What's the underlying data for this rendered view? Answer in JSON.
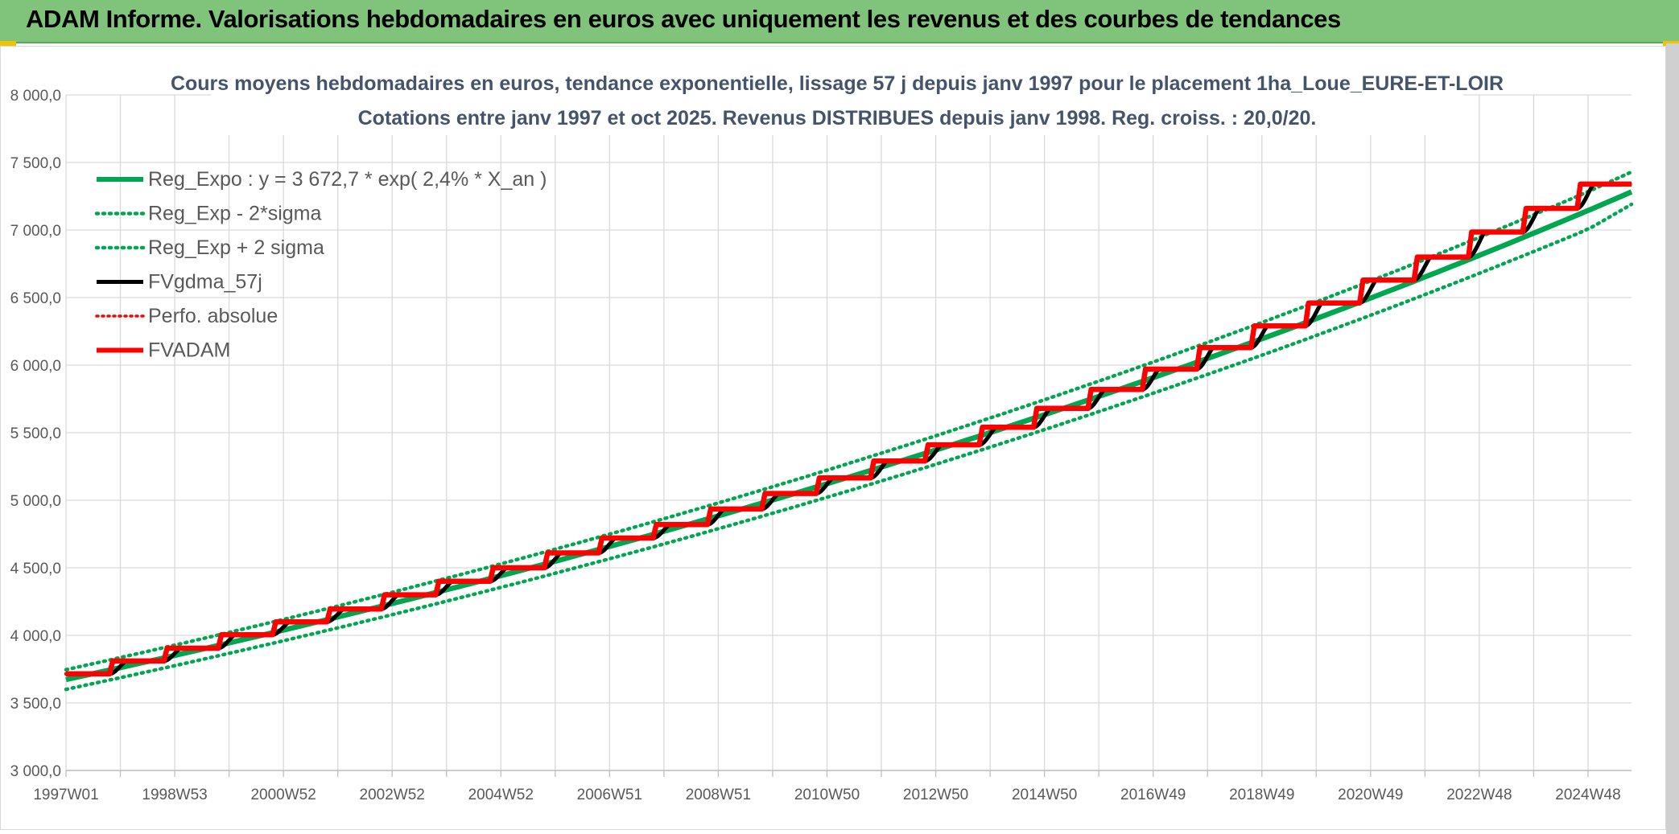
{
  "banner": {
    "title": "ADAM Informe. Valorisations hebdomadaires en euros avec uniquement les revenus et des courbes de tendances"
  },
  "colors": {
    "banner_bg": "#7fc47a",
    "reg_expo": "#00a650",
    "fv_gdma": "#000000",
    "perfo": "#ff0000",
    "fvadam": "#ff0000",
    "grid": "#d9d9d9",
    "text": "#595959",
    "title_text": "#44546a"
  },
  "chart_data": {
    "type": "line",
    "title": "Cours moyens hebdomadaires en euros, tendance exponentielle, lissage 57 j depuis janv 1997 pour le placement 1ha_Loue_EURE-ET-LOIR",
    "subtitle": "Cotations entre janv 1997 et oct 2025. Revenus DISTRIBUES depuis janv 1998. Reg. croiss. : 20,0/20.",
    "xlabel": "",
    "ylabel": "",
    "ylim": [
      3000,
      8000
    ],
    "yticks": [
      "3 000,0",
      "3 500,0",
      "4 000,0",
      "4 500,0",
      "5 000,0",
      "5 500,0",
      "6 000,0",
      "6 500,0",
      "7 000,0",
      "7 500,0",
      "8 000,0"
    ],
    "ytick_values": [
      3000,
      3500,
      4000,
      4500,
      5000,
      5500,
      6000,
      6500,
      7000,
      7500,
      8000
    ],
    "xrange_years": [
      1997.0,
      2025.8
    ],
    "xticks": [
      {
        "label": "1997W01",
        "year": 1997.0
      },
      {
        "label": "1998W53",
        "year": 1999.0
      },
      {
        "label": "2000W52",
        "year": 2001.0
      },
      {
        "label": "2002W52",
        "year": 2003.0
      },
      {
        "label": "2004W52",
        "year": 2005.0
      },
      {
        "label": "2006W51",
        "year": 2007.0
      },
      {
        "label": "2008W51",
        "year": 2009.0
      },
      {
        "label": "2010W50",
        "year": 2011.0
      },
      {
        "label": "2012W50",
        "year": 2013.0
      },
      {
        "label": "2014W50",
        "year": 2015.0
      },
      {
        "label": "2016W49",
        "year": 2017.0
      },
      {
        "label": "2018W49",
        "year": 2019.0
      },
      {
        "label": "2020W49",
        "year": 2021.0
      },
      {
        "label": "2022W48",
        "year": 2023.0
      },
      {
        "label": "2024W48",
        "year": 2025.0
      }
    ],
    "grid": true,
    "legend_position": "top-left",
    "series": [
      {
        "name": "Reg_Expo : y = 3 672,7 * exp( 2,4% *  X_an )",
        "style": "solid-thick",
        "color": "#00a650",
        "x": [
          1997.0,
          2001.0,
          2005.0,
          2009.0,
          2013.0,
          2017.0,
          2021.0,
          2025.0,
          2025.8
        ],
        "values": [
          3672.7,
          4038.7,
          4441.5,
          4884.4,
          5371.5,
          5907.2,
          6496.3,
          7144.1,
          7282.5
        ]
      },
      {
        "name": "Reg_Exp - 2*sigma",
        "style": "dotted",
        "color": "#00a650",
        "x": [
          1997.0,
          2001.0,
          2005.0,
          2009.0,
          2013.0,
          2017.0,
          2021.0,
          2025.0,
          2025.8
        ],
        "values": [
          3600,
          3960,
          4355,
          4789,
          5266,
          5792,
          6369,
          7005,
          7190
        ]
      },
      {
        "name": "Reg_Exp + 2 sigma",
        "style": "dotted",
        "color": "#00a650",
        "x": [
          1997.0,
          2001.0,
          2005.0,
          2009.0,
          2013.0,
          2017.0,
          2021.0,
          2025.0,
          2025.8
        ],
        "values": [
          3746,
          4118,
          4529,
          4980,
          5477,
          6023,
          6623,
          7284,
          7430
        ]
      },
      {
        "name": "FVgdma_57j",
        "style": "solid",
        "color": "#000000",
        "step_years": [
          1997,
          1998,
          1999,
          2000,
          2001,
          2002,
          2003,
          2004,
          2005,
          2006,
          2007,
          2008,
          2009,
          2010,
          2011,
          2012,
          2013,
          2014,
          2015,
          2016,
          2017,
          2018,
          2019,
          2020,
          2021,
          2022,
          2023,
          2024,
          2025
        ],
        "values": [
          3715,
          3810,
          3905,
          4005,
          4100,
          4195,
          4300,
          4400,
          4500,
          4610,
          4720,
          4820,
          4935,
          5050,
          5165,
          5290,
          5410,
          5540,
          5680,
          5820,
          5970,
          6130,
          6290,
          6460,
          6630,
          6800,
          6985,
          7160,
          7340
        ]
      },
      {
        "name": "Perfo. absolue",
        "style": "dotted",
        "color": "#ff0000",
        "step_years": [
          1997,
          1998,
          1999,
          2000,
          2001,
          2002,
          2003,
          2004,
          2005,
          2006,
          2007,
          2008,
          2009,
          2010,
          2011,
          2012,
          2013,
          2014,
          2015,
          2016,
          2017,
          2018,
          2019,
          2020,
          2021,
          2022,
          2023,
          2024,
          2025
        ],
        "values": [
          3715,
          3810,
          3905,
          4005,
          4100,
          4195,
          4300,
          4400,
          4500,
          4610,
          4720,
          4820,
          4935,
          5050,
          5165,
          5290,
          5410,
          5540,
          5680,
          5820,
          5970,
          6130,
          6290,
          6460,
          6630,
          6800,
          6985,
          7160,
          7340
        ]
      },
      {
        "name": "FVADAM",
        "style": "solid-thick",
        "color": "#ff0000",
        "step_years": [
          1997,
          1998,
          1999,
          2000,
          2001,
          2002,
          2003,
          2004,
          2005,
          2006,
          2007,
          2008,
          2009,
          2010,
          2011,
          2012,
          2013,
          2014,
          2015,
          2016,
          2017,
          2018,
          2019,
          2020,
          2021,
          2022,
          2023,
          2024,
          2025
        ],
        "values": [
          3715,
          3810,
          3905,
          4005,
          4100,
          4195,
          4300,
          4400,
          4500,
          4610,
          4720,
          4820,
          4935,
          5050,
          5165,
          5290,
          5410,
          5540,
          5680,
          5820,
          5970,
          6130,
          6290,
          6460,
          6630,
          6800,
          6985,
          7160,
          7340
        ]
      }
    ]
  }
}
